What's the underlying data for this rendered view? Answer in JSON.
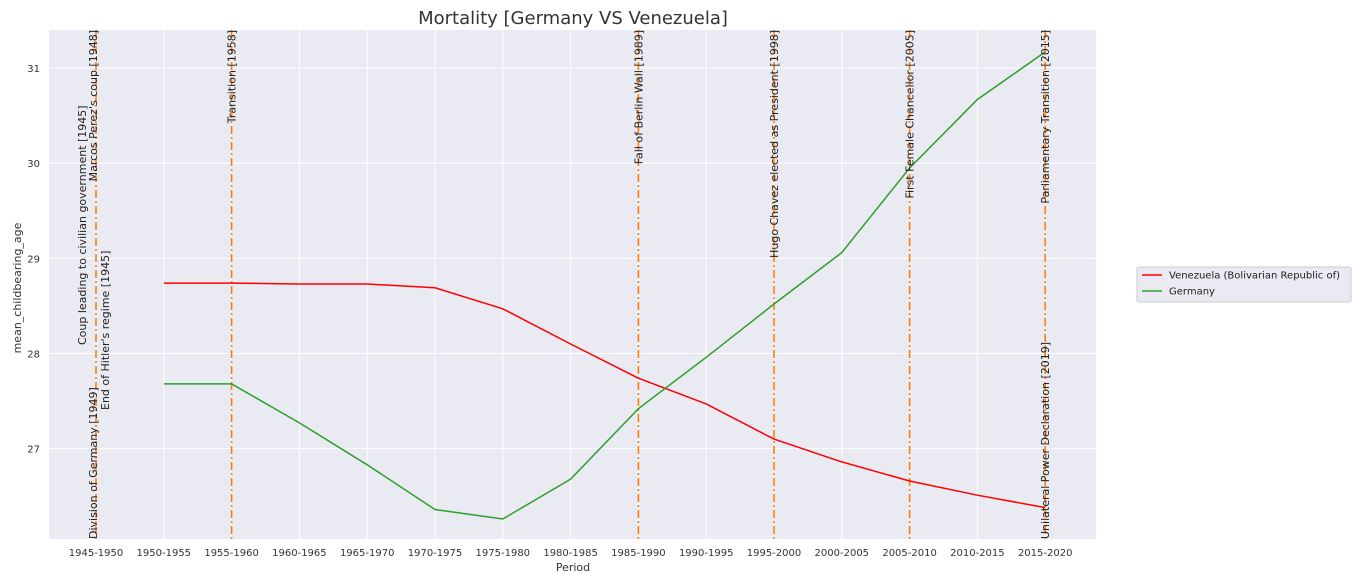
{
  "chart_data": {
    "type": "line",
    "title": "Mortality [Germany VS Venezuela]",
    "xlabel": "Period",
    "ylabel": "mean_childbearing_age",
    "categories": [
      "1945-1950",
      "1950-1955",
      "1955-1960",
      "1960-1965",
      "1965-1970",
      "1970-1975",
      "1975-1980",
      "1980-1985",
      "1985-1990",
      "1990-1995",
      "1995-2000",
      "2000-2005",
      "2005-2010",
      "2010-2015",
      "2015-2020"
    ],
    "yticks": [
      27,
      28,
      29,
      30,
      31
    ],
    "ylim": [
      26.05,
      31.4
    ],
    "grid": true,
    "legend_position": "right",
    "series": [
      {
        "name": "Venezuela (Bolivarian Republic of)",
        "color": "#ff0000",
        "values": [
          null,
          28.74,
          28.74,
          28.73,
          28.73,
          28.69,
          28.47,
          28.1,
          27.74,
          27.47,
          27.1,
          26.86,
          26.66,
          26.51,
          26.38
        ]
      },
      {
        "name": "Germany",
        "color": "#2ca02c",
        "values": [
          null,
          27.68,
          27.68,
          27.27,
          26.83,
          26.36,
          26.26,
          26.68,
          27.42,
          27.96,
          28.52,
          29.06,
          29.95,
          30.67,
          31.17
        ]
      }
    ],
    "annotations": [
      {
        "label": "Coup leading to civilian government [1945]",
        "x": 0,
        "anchor": "bottom",
        "color": "#ff7f0e"
      },
      {
        "label": "Division of Germany [1949]",
        "x": 0,
        "anchor": "bottom",
        "color": "#ff7f0e"
      },
      {
        "label": "Marcos Perez's coup [1948]",
        "x": 0,
        "anchor": "top",
        "color": "#ff7f0e"
      },
      {
        "label": "End of Hitler's regime [1945]",
        "x": 0,
        "anchor": "middle",
        "color": "#ff7f0e"
      },
      {
        "label": "Transition [1958]",
        "x": 2,
        "anchor": "top",
        "color": "#ff7f0e"
      },
      {
        "label": "Fall of Berlin Wall [1989]",
        "x": 8,
        "anchor": "top",
        "color": "#ff7f0e"
      },
      {
        "label": "Hugo Chavez elected as President [1998]",
        "x": 10,
        "anchor": "top",
        "color": "#ff7f0e"
      },
      {
        "label": "First Female Chancellor [2005]",
        "x": 12,
        "anchor": "top",
        "color": "#ff7f0e"
      },
      {
        "label": "Parliamentary Transition [2015]",
        "x": 14,
        "anchor": "top",
        "color": "#ff7f0e"
      },
      {
        "label": "Unilateral Power Declaration [2019]",
        "x": 14,
        "anchor": "bottom",
        "color": "#ff7f0e"
      }
    ]
  }
}
